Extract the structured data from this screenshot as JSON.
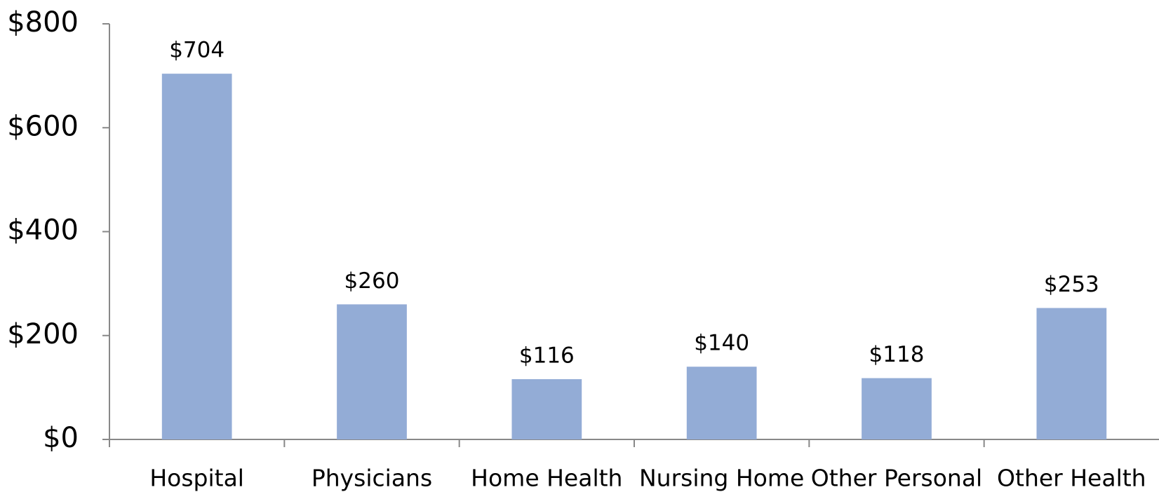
{
  "chart_data": {
    "type": "bar",
    "categories": [
      "Hospital",
      "Physicians",
      "Home Health",
      "Nursing Home",
      "Other Personal",
      "Other Health"
    ],
    "values": [
      704,
      260,
      116,
      140,
      118,
      253
    ],
    "value_labels": [
      "$704",
      "$260",
      "$116",
      "$140",
      "$118",
      "$253"
    ],
    "color": "#93acd6",
    "ylim": [
      0,
      800
    ],
    "yticks": [
      {
        "value": 0,
        "label": "$0"
      },
      {
        "value": 200,
        "label": "$200"
      },
      {
        "value": 400,
        "label": "$400"
      },
      {
        "value": 600,
        "label": "$600"
      },
      {
        "value": 800,
        "label": "$800"
      }
    ],
    "grid": false
  }
}
